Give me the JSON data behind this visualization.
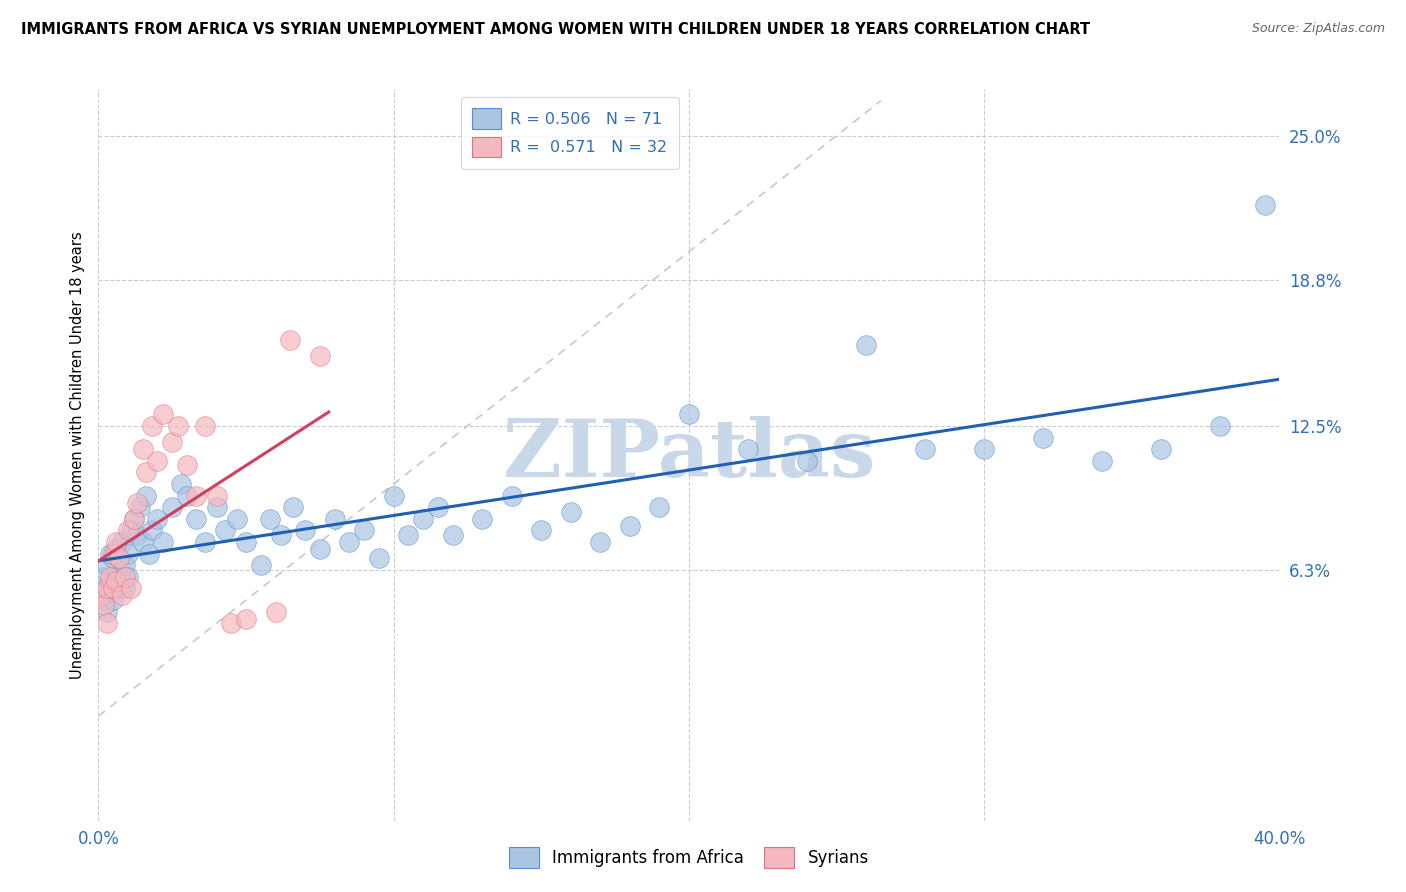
{
  "title": "IMMIGRANTS FROM AFRICA VS SYRIAN UNEMPLOYMENT AMONG WOMEN WITH CHILDREN UNDER 18 YEARS CORRELATION CHART",
  "source": "Source: ZipAtlas.com",
  "ylabel": "Unemployment Among Women with Children Under 18 years",
  "ytick_labels": [
    "6.3%",
    "12.5%",
    "18.8%",
    "25.0%"
  ],
  "ytick_values": [
    0.063,
    0.125,
    0.188,
    0.25
  ],
  "xlim": [
    0.0,
    0.4
  ],
  "ylim": [
    -0.045,
    0.27
  ],
  "r_africa": 0.506,
  "n_africa": 71,
  "r_syrian": 0.571,
  "n_syrian": 32,
  "africa_color": "#aac4e2",
  "africa_edge_color": "#5590cc",
  "africa_line_color": "#2060b0",
  "syrian_color": "#f5b8c0",
  "syrian_edge_color": "#e07080",
  "syrian_line_color": "#d04060",
  "diagonal_color": "#c8c8c8",
  "watermark_text": "ZIPatlas",
  "watermark_color": "#c8d8e8",
  "legend_label_africa": "Immigrants from Africa",
  "legend_label_syrian": "Syrians",
  "africa_x": [
    0.001,
    0.002,
    0.002,
    0.003,
    0.003,
    0.004,
    0.004,
    0.005,
    0.005,
    0.006,
    0.006,
    0.007,
    0.007,
    0.008,
    0.008,
    0.009,
    0.009,
    0.01,
    0.01,
    0.011,
    0.012,
    0.013,
    0.014,
    0.015,
    0.016,
    0.017,
    0.018,
    0.02,
    0.022,
    0.025,
    0.028,
    0.03,
    0.033,
    0.036,
    0.04,
    0.043,
    0.047,
    0.05,
    0.055,
    0.058,
    0.062,
    0.066,
    0.07,
    0.075,
    0.08,
    0.085,
    0.09,
    0.095,
    0.1,
    0.105,
    0.11,
    0.115,
    0.12,
    0.13,
    0.14,
    0.15,
    0.16,
    0.17,
    0.18,
    0.19,
    0.2,
    0.22,
    0.24,
    0.26,
    0.28,
    0.3,
    0.32,
    0.34,
    0.36,
    0.38,
    0.395
  ],
  "africa_y": [
    0.055,
    0.05,
    0.06,
    0.045,
    0.065,
    0.055,
    0.07,
    0.05,
    0.068,
    0.06,
    0.072,
    0.055,
    0.068,
    0.06,
    0.075,
    0.055,
    0.065,
    0.07,
    0.06,
    0.08,
    0.085,
    0.078,
    0.09,
    0.075,
    0.095,
    0.07,
    0.08,
    0.085,
    0.075,
    0.09,
    0.1,
    0.095,
    0.085,
    0.075,
    0.09,
    0.08,
    0.085,
    0.075,
    0.065,
    0.085,
    0.078,
    0.09,
    0.08,
    0.072,
    0.085,
    0.075,
    0.08,
    0.068,
    0.095,
    0.078,
    0.085,
    0.09,
    0.078,
    0.085,
    0.095,
    0.08,
    0.088,
    0.075,
    0.082,
    0.09,
    0.13,
    0.115,
    0.11,
    0.16,
    0.115,
    0.115,
    0.12,
    0.11,
    0.115,
    0.125,
    0.22
  ],
  "syrian_x": [
    0.001,
    0.002,
    0.003,
    0.003,
    0.004,
    0.005,
    0.005,
    0.006,
    0.006,
    0.007,
    0.008,
    0.009,
    0.01,
    0.011,
    0.012,
    0.013,
    0.015,
    0.016,
    0.018,
    0.02,
    0.022,
    0.025,
    0.027,
    0.03,
    0.033,
    0.036,
    0.04,
    0.045,
    0.05,
    0.06,
    0.065,
    0.075
  ],
  "syrian_y": [
    0.052,
    0.048,
    0.055,
    0.04,
    0.06,
    0.07,
    0.055,
    0.058,
    0.075,
    0.068,
    0.052,
    0.06,
    0.08,
    0.055,
    0.085,
    0.092,
    0.115,
    0.105,
    0.125,
    0.11,
    0.13,
    0.118,
    0.125,
    0.108,
    0.095,
    0.125,
    0.095,
    0.04,
    0.042,
    0.045,
    0.162,
    0.155
  ]
}
